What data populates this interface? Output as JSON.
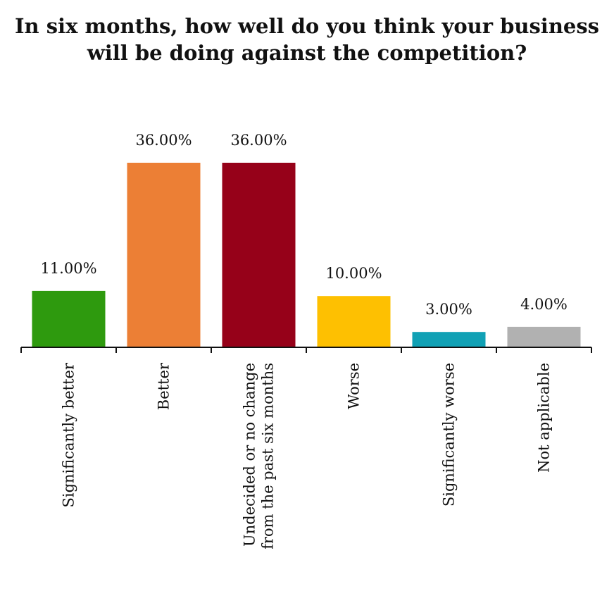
{
  "chart_data": {
    "type": "bar",
    "title_lines": [
      "In six months, how well do you think your business",
      "will be doing against the competition?"
    ],
    "categories": [
      [
        "Significantly better"
      ],
      [
        "Better"
      ],
      [
        "Undecided or no change",
        "from the past six months"
      ],
      [
        "Worse"
      ],
      [
        "Significantly worse"
      ],
      [
        "Not applicable"
      ]
    ],
    "values": [
      11.0,
      36.0,
      36.0,
      10.0,
      3.0,
      4.0
    ],
    "value_labels": [
      "11.00%",
      "36.00%",
      "36.00%",
      "10.00%",
      "3.00%",
      "4.00%"
    ],
    "colors": [
      "#2e9a0e",
      "#ec7f35",
      "#960119",
      "#fec001",
      "#11a1b5",
      "#b1b1b1"
    ],
    "ylim": [
      0,
      36
    ],
    "grid": false,
    "legend": "none"
  }
}
